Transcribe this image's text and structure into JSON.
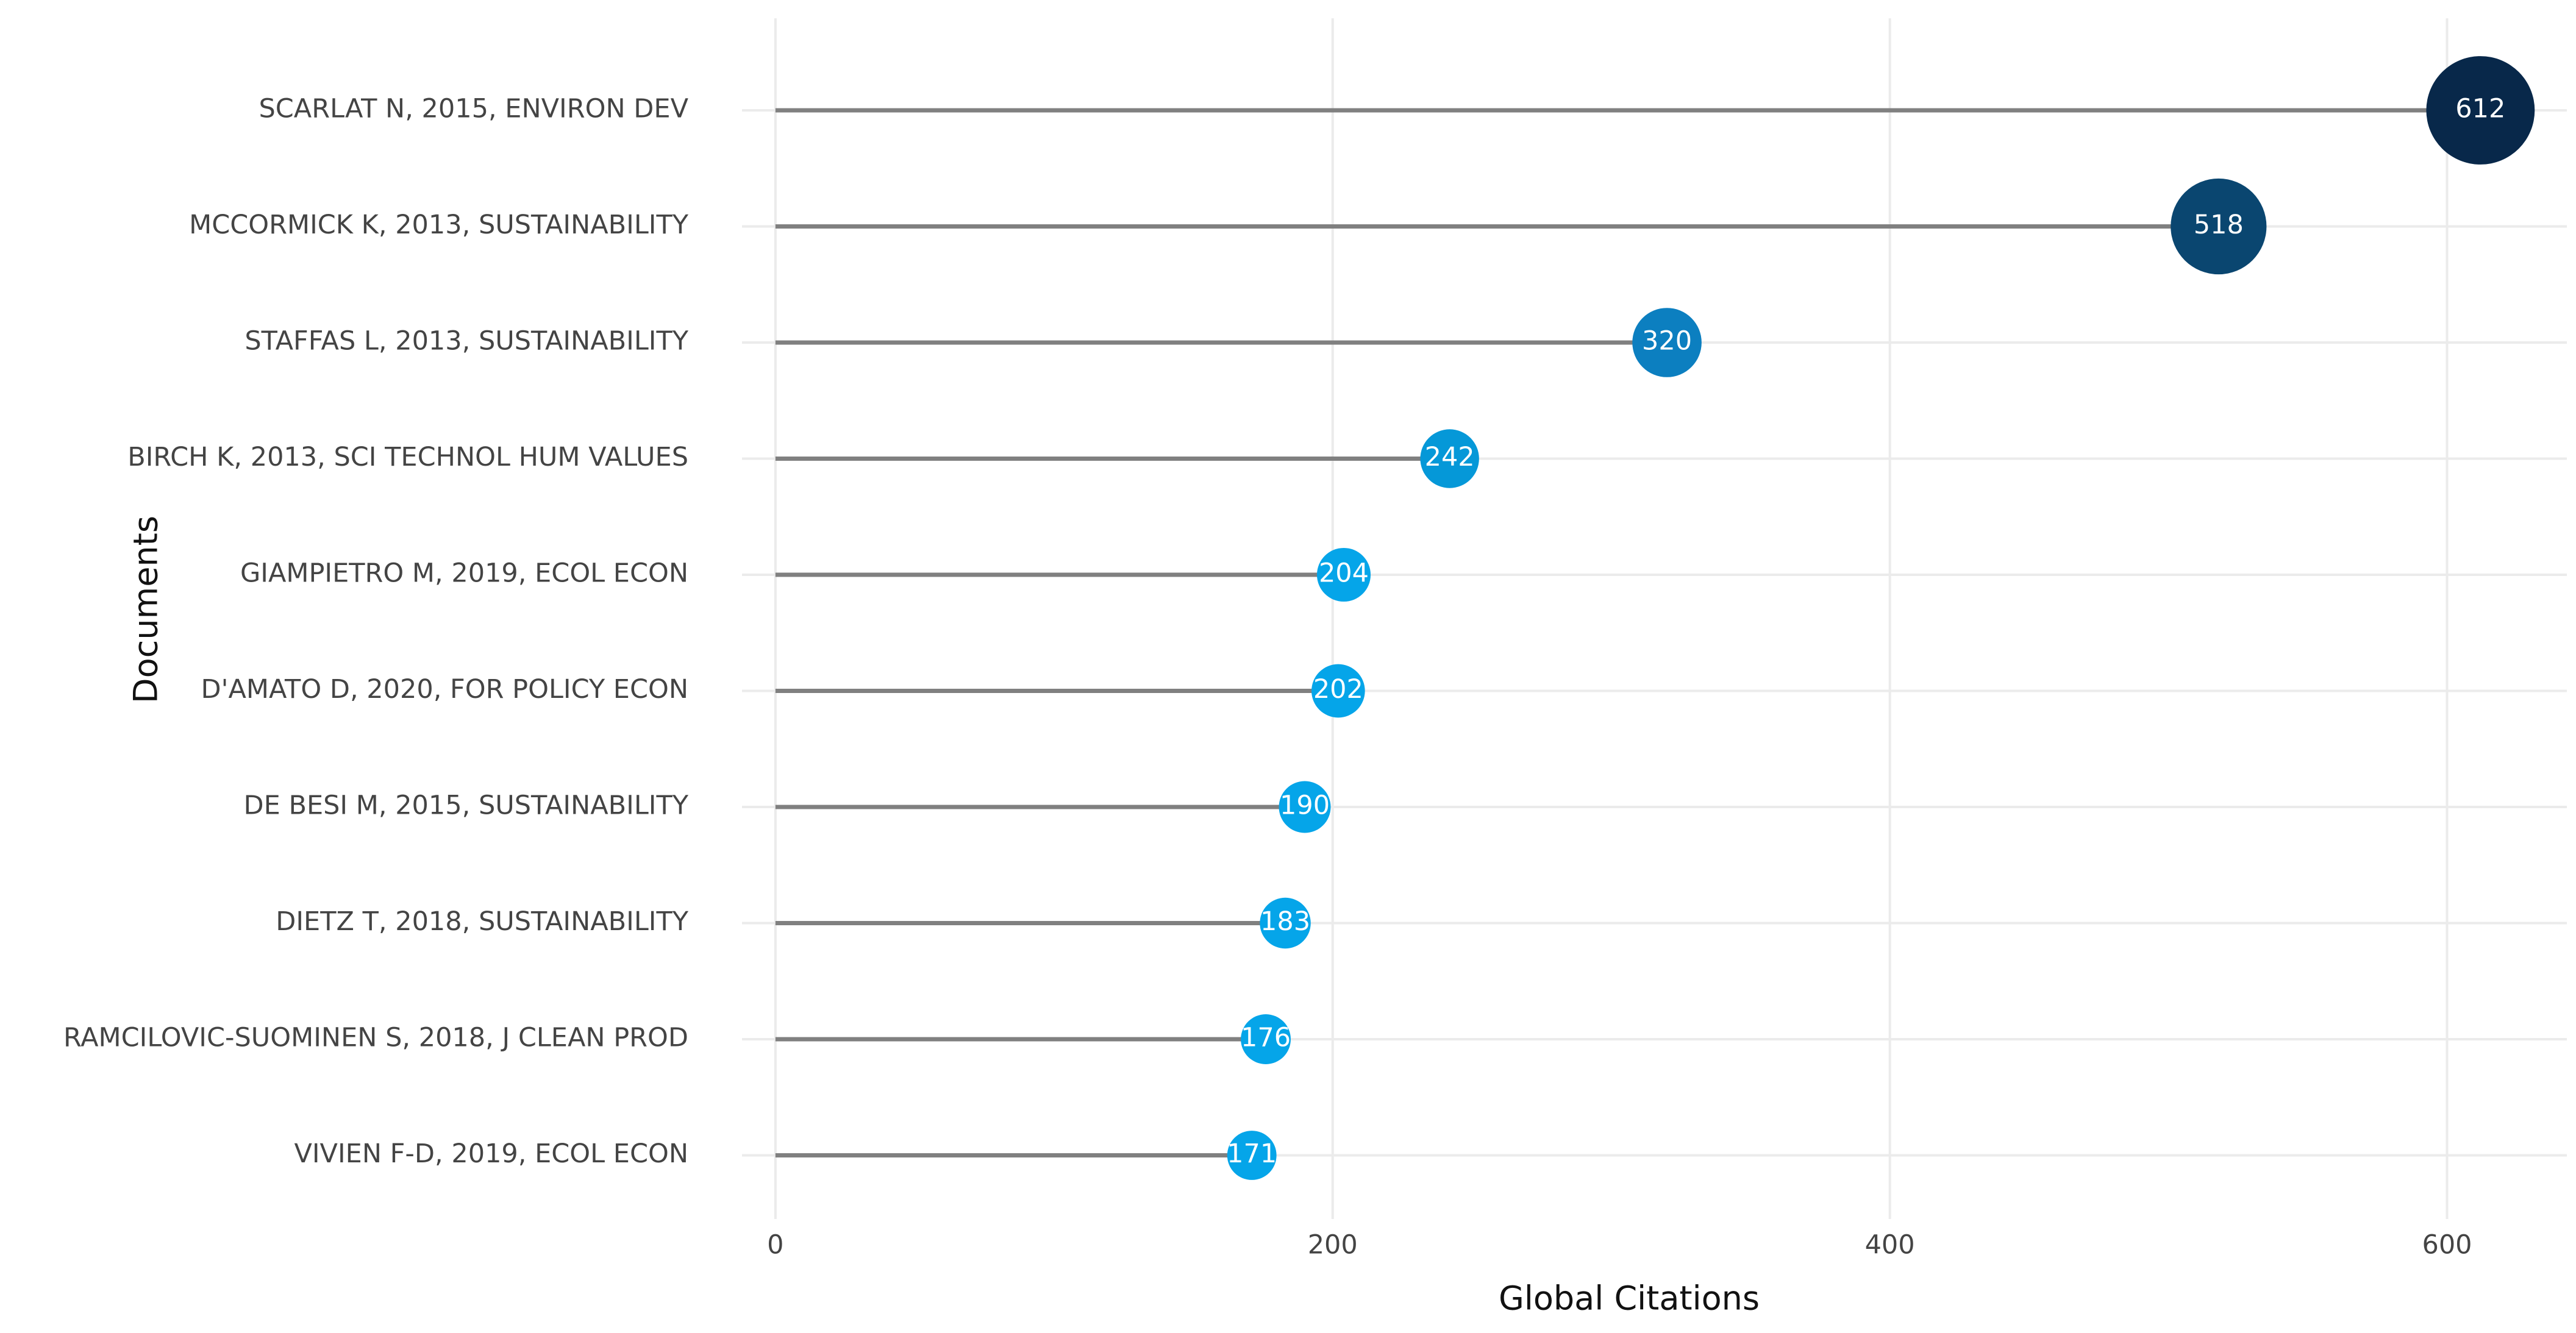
{
  "chart_data": {
    "type": "lollipop",
    "categories": [
      "SCARLAT N, 2015, ENVIRON DEV",
      "MCCORMICK K, 2013, SUSTAINABILITY",
      "STAFFAS L, 2013, SUSTAINABILITY",
      "BIRCH K, 2013, SCI TECHNOL HUM VALUES",
      "GIAMPIETRO M, 2019, ECOL ECON",
      "D'AMATO D, 2020, FOR POLICY ECON",
      "DE BESI M, 2015, SUSTAINABILITY",
      "DIETZ T, 2018, SUSTAINABILITY",
      "RAMCILOVIC-SUOMINEN S, 2018, J CLEAN PROD",
      "VIVIEN F-D, 2019, ECOL ECON"
    ],
    "values": [
      612,
      518,
      320,
      242,
      204,
      202,
      190,
      183,
      176,
      171
    ],
    "colors": [
      "#08284a",
      "#0a4670",
      "#0c7fc0",
      "#0598d8",
      "#05a5e9",
      "#05a5e9",
      "#05a5e9",
      "#05a5e9",
      "#05a5e9",
      "#05a5e9"
    ],
    "stem_color": "#808080",
    "xlabel": "Global Citations",
    "ylabel": "Documents",
    "xlim": [
      -12,
      643
    ],
    "xticks": [
      0,
      200,
      400,
      600
    ],
    "grid": true
  }
}
